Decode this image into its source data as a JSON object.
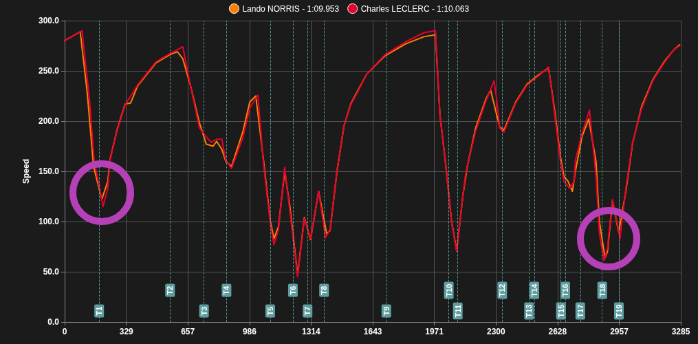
{
  "chart_data": {
    "type": "line",
    "ylabel": "Speed",
    "legend": "top",
    "grid": true,
    "marker": "none",
    "line_style": "solid",
    "xlim": [
      0,
      3285
    ],
    "xticks": [
      0,
      329,
      657,
      986,
      1314,
      1643,
      1971,
      2300,
      2628,
      2957,
      3285
    ],
    "ylim": [
      0,
      300
    ],
    "yticks": [
      {
        "value": 0,
        "label": "0.0"
      },
      {
        "value": 50,
        "label": "50.0"
      },
      {
        "value": 100,
        "label": "100.0"
      },
      {
        "value": 150,
        "label": "150.0"
      },
      {
        "value": 200,
        "label": "200.0"
      },
      {
        "value": 250,
        "label": "250.0"
      },
      {
        "value": 300,
        "label": "300.0"
      }
    ],
    "series": [
      {
        "name": "Lando NORRIS - 1:09.953",
        "color": "#ff8000",
        "x": [
          0,
          83,
          120,
          154,
          198,
          230,
          242,
          279,
          322,
          352,
          389,
          487,
          560,
          601,
          630,
          670,
          719,
          755,
          792,
          810,
          838,
          859,
          890,
          951,
          987,
          1019,
          1061,
          1097,
          1116,
          1140,
          1173,
          1201,
          1242,
          1278,
          1311,
          1354,
          1397,
          1415,
          1452,
          1489,
          1525,
          1562,
          1611,
          1708,
          1819,
          1916,
          1977,
          2001,
          2032,
          2063,
          2090,
          2124,
          2148,
          2191,
          2246,
          2271,
          2301,
          2320,
          2342,
          2405,
          2466,
          2527,
          2580,
          2613,
          2643,
          2662,
          2684,
          2707,
          2723,
          2759,
          2794,
          2833,
          2851,
          2881,
          2894,
          2921,
          2954,
          2992,
          3028,
          3077,
          3138,
          3200,
          3248,
          3279
        ],
        "values": [
          280,
          289,
          229,
          155,
          122,
          140,
          162,
          191,
          217,
          218,
          235,
          258,
          266,
          269,
          262,
          236,
          198,
          177,
          175,
          180,
          172,
          160,
          155,
          190,
          219,
          225,
          160,
          100,
          83,
          95,
          150,
          115,
          47,
          104,
          82,
          130,
          88,
          91,
          150,
          195,
          217,
          230,
          247,
          265,
          277,
          284,
          286,
          206,
          156,
          100,
          71,
          127,
          156,
          193,
          222,
          231,
          208,
          194,
          191,
          219,
          237,
          246,
          253,
          210,
          165,
          145,
          140,
          130,
          150,
          185,
          202,
          160,
          100,
          64,
          70,
          121,
          89,
          130,
          178,
          215,
          242,
          260,
          271,
          276
        ]
      },
      {
        "name": "Charles LECLERC - 1:10.063",
        "color": "#e8002d",
        "x": [
          0,
          93,
          132,
          157,
          205,
          230,
          242,
          279,
          322,
          389,
          487,
          560,
          630,
          670,
          719,
          743,
          780,
          810,
          838,
          859,
          890,
          951,
          987,
          1030,
          1061,
          1097,
          1116,
          1140,
          1173,
          1201,
          1242,
          1278,
          1311,
          1354,
          1391,
          1415,
          1452,
          1489,
          1525,
          1562,
          1611,
          1708,
          1819,
          1916,
          1977,
          2001,
          2032,
          2063,
          2090,
          2124,
          2136,
          2148,
          2191,
          2246,
          2289,
          2301,
          2320,
          2342,
          2405,
          2466,
          2527,
          2580,
          2613,
          2643,
          2662,
          2692,
          2717,
          2723,
          2759,
          2798,
          2833,
          2851,
          2876,
          2894,
          2921,
          2943,
          2961,
          2992,
          3028,
          3077,
          3138,
          3200,
          3248,
          3279
        ],
        "values": [
          280,
          290,
          222,
          161,
          115,
          133,
          161,
          190,
          216,
          236,
          259,
          267,
          274,
          236,
          193,
          187,
          179,
          182,
          182,
          161,
          153,
          184,
          213,
          226,
          156,
          97,
          77,
          92,
          154,
          110,
          45,
          103,
          83,
          130,
          84,
          92,
          151,
          195,
          216,
          229,
          247,
          266,
          279,
          288,
          290,
          206,
          156,
          99,
          70,
          127,
          145,
          156,
          190,
          220,
          240,
          225,
          193,
          189,
          218,
          236,
          245,
          254,
          206,
          161,
          140,
          133,
          140,
          161,
          188,
          211,
          145,
          88,
          61,
          74,
          122,
          101,
          83,
          133,
          179,
          213,
          241,
          259,
          271,
          275
        ]
      }
    ],
    "ref_lines": [
      {
        "axis": "x",
        "value": 184,
        "label": "T1",
        "color": "#5fb3b3",
        "line_style": "dotted"
      },
      {
        "axis": "x",
        "value": 562,
        "label": "T2",
        "color": "#5fb3b3",
        "line_style": "dotted"
      },
      {
        "axis": "x",
        "value": 743,
        "label": "T3",
        "color": "#5fb3b3",
        "line_style": "dotted"
      },
      {
        "axis": "x",
        "value": 863,
        "label": "T4",
        "color": "#5fb3b3",
        "line_style": "dotted"
      },
      {
        "axis": "x",
        "value": 1096,
        "label": "T5",
        "color": "#5fb3b3",
        "line_style": "dotted"
      },
      {
        "axis": "x",
        "value": 1217,
        "label": "T6",
        "color": "#5fb3b3",
        "line_style": "dotted"
      },
      {
        "axis": "x",
        "value": 1295,
        "label": "T7",
        "color": "#5fb3b3",
        "line_style": "dotted"
      },
      {
        "axis": "x",
        "value": 1383,
        "label": "T8",
        "color": "#5fb3b3",
        "line_style": "dotted"
      },
      {
        "axis": "x",
        "value": 1715,
        "label": "T9",
        "color": "#5fb3b3",
        "line_style": "dotted"
      },
      {
        "axis": "x",
        "value": 2048,
        "label": "T10",
        "color": "#5fb3b3",
        "line_style": "dotted"
      },
      {
        "axis": "x",
        "value": 2096,
        "label": "T11",
        "color": "#5fb3b3",
        "line_style": "dotted"
      },
      {
        "axis": "x",
        "value": 2333,
        "label": "T12",
        "color": "#5fb3b3",
        "line_style": "dotted"
      },
      {
        "axis": "x",
        "value": 2476,
        "label": "T13",
        "color": "#5fb3b3",
        "line_style": "dotted"
      },
      {
        "axis": "x",
        "value": 2504,
        "label": "T14",
        "color": "#5fb3b3",
        "line_style": "dotted"
      },
      {
        "axis": "x",
        "value": 2646,
        "label": "T15",
        "color": "#5fb3b3",
        "line_style": "dotted"
      },
      {
        "axis": "x",
        "value": 2669,
        "label": "T16",
        "color": "#5fb3b3",
        "line_style": "dotted"
      },
      {
        "axis": "x",
        "value": 2749,
        "label": "T17",
        "color": "#5fb3b3",
        "line_style": "dotted"
      },
      {
        "axis": "x",
        "value": 2866,
        "label": "T18",
        "color": "#5fb3b3",
        "line_style": "dotted"
      },
      {
        "axis": "x",
        "value": 2955,
        "label": "T19",
        "color": "#5fb3b3",
        "line_style": "dotted"
      }
    ]
  }
}
